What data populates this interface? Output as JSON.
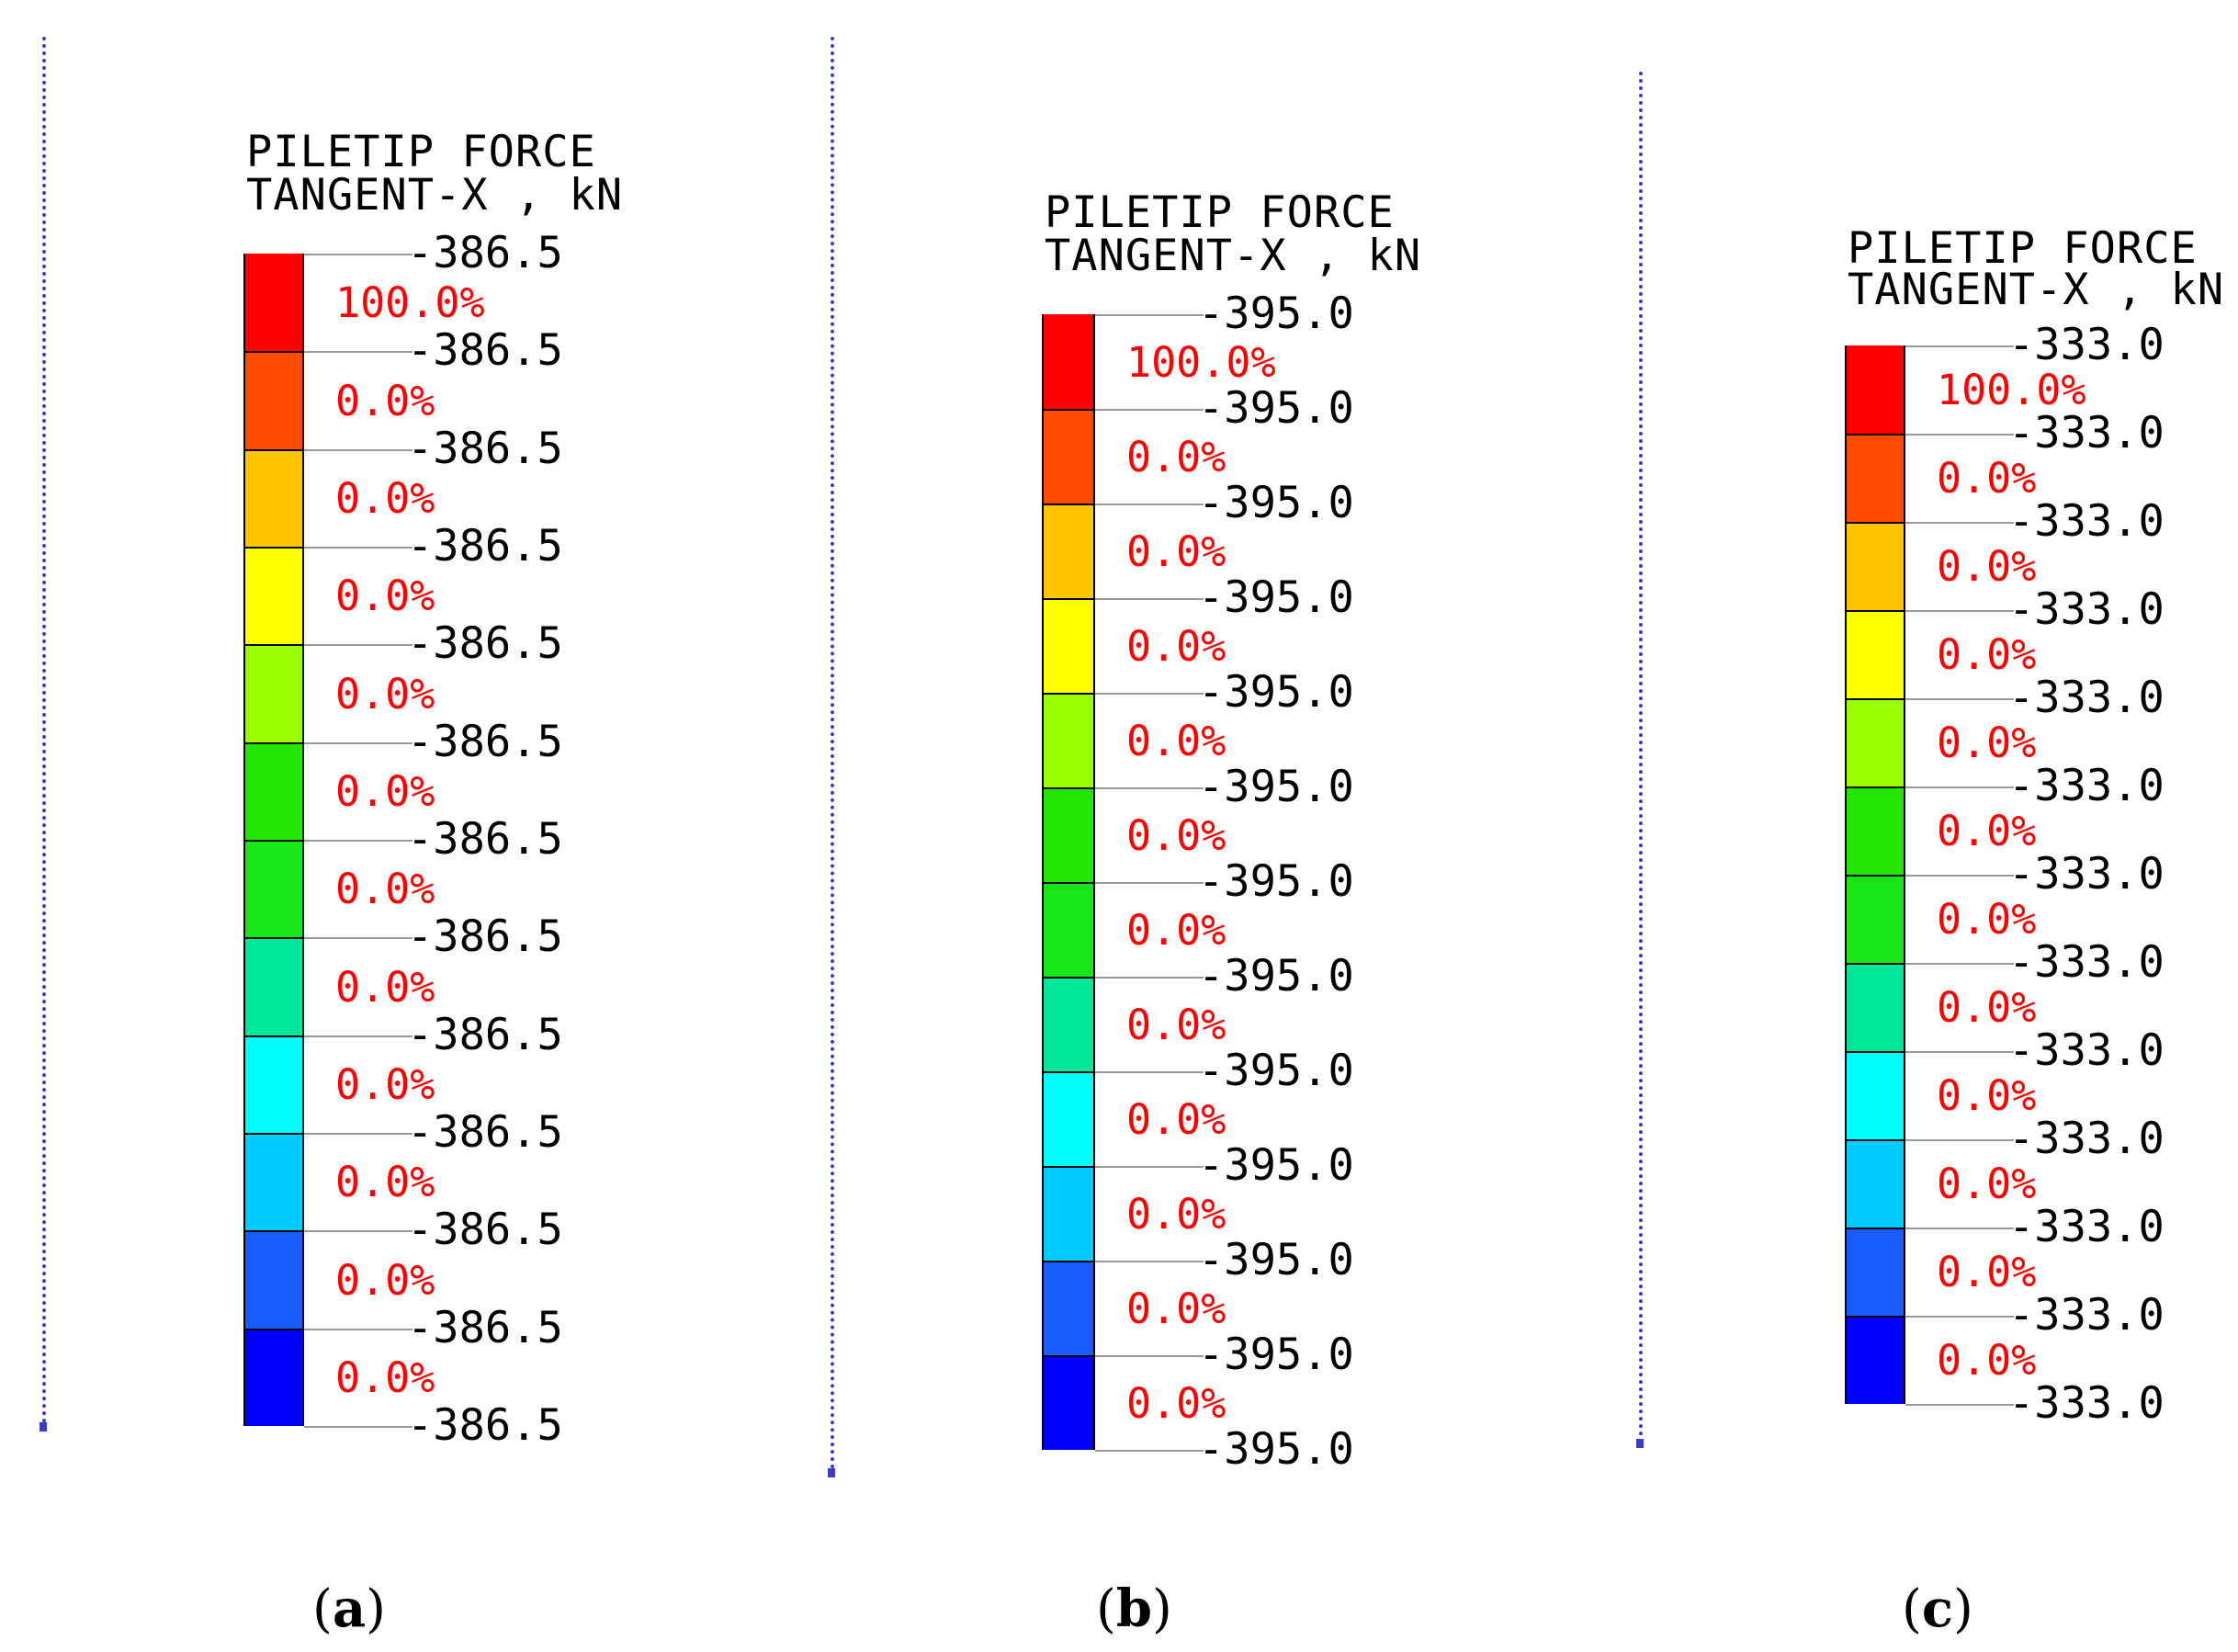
{
  "legend_title": [
    "PILETIP FORCE",
    "TANGENT-X , kN"
  ],
  "band_colors": [
    "#ff0000",
    "#ff4a00",
    "#ffc400",
    "#ffff00",
    "#99ff00",
    "#22e600",
    "#19e619",
    "#00e69a",
    "#00ffff",
    "#00ccff",
    "#1a5cff",
    "#0000ff"
  ],
  "panels": [
    {
      "caption": "a",
      "tick_labels": [
        "-386.5",
        "-386.5",
        "-386.5",
        "-386.5",
        "-386.5",
        "-386.5",
        "-386.5",
        "-386.5",
        "-386.5",
        "-386.5",
        "-386.5",
        "-386.5",
        "-386.5"
      ],
      "percent_labels": [
        "100.0%",
        "0.0%",
        "0.0%",
        "0.0%",
        "0.0%",
        "0.0%",
        "0.0%",
        "0.0%",
        "0.0%",
        "0.0%",
        "0.0%",
        "0.0%"
      ]
    },
    {
      "caption": "b",
      "tick_labels": [
        "-395.0",
        "-395.0",
        "-395.0",
        "-395.0",
        "-395.0",
        "-395.0",
        "-395.0",
        "-395.0",
        "-395.0",
        "-395.0",
        "-395.0",
        "-395.0",
        "-395.0"
      ],
      "percent_labels": [
        "100.0%",
        "0.0%",
        "0.0%",
        "0.0%",
        "0.0%",
        "0.0%",
        "0.0%",
        "0.0%",
        "0.0%",
        "0.0%",
        "0.0%",
        "0.0%"
      ]
    },
    {
      "caption": "c",
      "tick_labels": [
        "-333.0",
        "-333.0",
        "-333.0",
        "-333.0",
        "-333.0",
        "-333.0",
        "-333.0",
        "-333.0",
        "-333.0",
        "-333.0",
        "-333.0",
        "-333.0",
        "-333.0"
      ],
      "percent_labels": [
        "100.0%",
        "0.0%",
        "0.0%",
        "0.0%",
        "0.0%",
        "0.0%",
        "0.0%",
        "0.0%",
        "0.0%",
        "0.0%",
        "0.0%",
        "0.0%"
      ]
    }
  ]
}
